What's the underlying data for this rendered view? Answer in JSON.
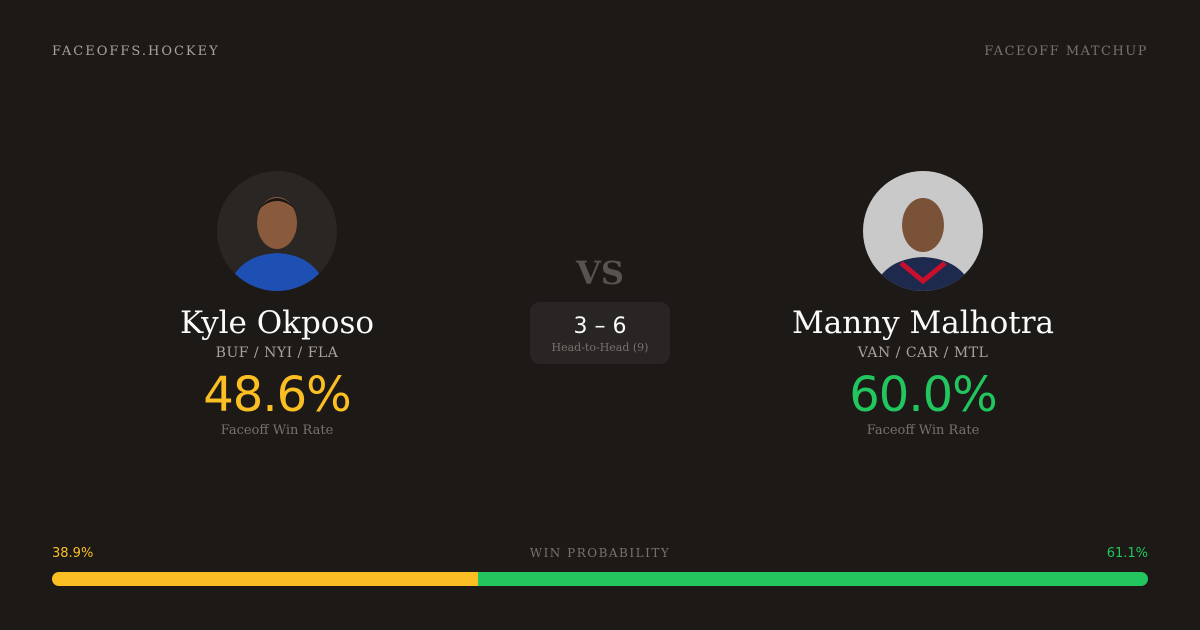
{
  "header": {
    "brand": "FACEOFFS.HOCKEY",
    "tag": "FACEOFF MATCHUP"
  },
  "colors": {
    "left": "#fbbf24",
    "right": "#22c55e",
    "background": "#1c1917"
  },
  "players": [
    {
      "name": "Kyle Okposo",
      "teams": "BUF / NYI / FLA",
      "win_rate": "48.6%",
      "win_rate_label": "Faceoff Win Rate",
      "avatar": "player-headshot"
    },
    {
      "name": "Manny Malhotra",
      "teams": "VAN / CAR / MTL",
      "win_rate": "60.0%",
      "win_rate_label": "Faceoff Win Rate",
      "avatar": "player-headshot"
    }
  ],
  "vs": "VS",
  "head_to_head": {
    "score": "3 – 6",
    "label": "Head-to-Head (9)"
  },
  "win_probability": {
    "label": "WIN PROBABILITY",
    "left": "38.9%",
    "right": "61.1%",
    "left_value": 38.9,
    "right_value": 61.1
  }
}
